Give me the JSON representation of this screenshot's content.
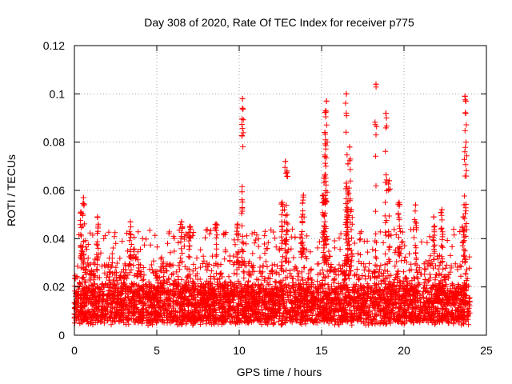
{
  "chart_data": {
    "type": "scatter",
    "title": "Day 308 of 2020, Rate Of TEC Index for receiver p775",
    "xlabel": "GPS time / hours",
    "ylabel": "ROTI / TECUs",
    "xlim": [
      0,
      25
    ],
    "ylim": [
      0,
      0.12
    ],
    "xticks": [
      0,
      5,
      10,
      15,
      20,
      25
    ],
    "xtick_labels": [
      "0",
      "5",
      "10",
      "15",
      "20",
      "25"
    ],
    "yticks": [
      0,
      0.02,
      0.04,
      0.06,
      0.08,
      0.1,
      0.12
    ],
    "ytick_labels": [
      "0",
      "0.02",
      "0.04",
      "0.06",
      "0.08",
      "0.1",
      "0.12"
    ],
    "grid": true,
    "marker": "+",
    "color": "#ff0000",
    "series": [
      {
        "name": "ROTI",
        "x_range": [
          0,
          24
        ],
        "baseline_typical": 0.013,
        "baseline_spread": [
          0.004,
          0.03
        ],
        "notable_points": [
          {
            "x": 0.55,
            "y": 0.057
          },
          {
            "x": 0.4,
            "y": 0.051
          },
          {
            "x": 1.4,
            "y": 0.049
          },
          {
            "x": 3.4,
            "y": 0.047
          },
          {
            "x": 6.5,
            "y": 0.047
          },
          {
            "x": 7.0,
            "y": 0.045
          },
          {
            "x": 8.6,
            "y": 0.046
          },
          {
            "x": 9.9,
            "y": 0.046
          },
          {
            "x": 10.2,
            "y": 0.098
          },
          {
            "x": 10.2,
            "y": 0.094
          },
          {
            "x": 12.6,
            "y": 0.055
          },
          {
            "x": 12.8,
            "y": 0.072
          },
          {
            "x": 12.9,
            "y": 0.068
          },
          {
            "x": 13.9,
            "y": 0.058
          },
          {
            "x": 13.8,
            "y": 0.049
          },
          {
            "x": 15.3,
            "y": 0.097
          },
          {
            "x": 15.25,
            "y": 0.093
          },
          {
            "x": 15.2,
            "y": 0.084
          },
          {
            "x": 15.2,
            "y": 0.074
          },
          {
            "x": 15.15,
            "y": 0.065
          },
          {
            "x": 15.1,
            "y": 0.058
          },
          {
            "x": 16.5,
            "y": 0.1
          },
          {
            "x": 16.7,
            "y": 0.078
          },
          {
            "x": 16.6,
            "y": 0.071
          },
          {
            "x": 16.5,
            "y": 0.063
          },
          {
            "x": 16.6,
            "y": 0.059
          },
          {
            "x": 16.8,
            "y": 0.052
          },
          {
            "x": 18.3,
            "y": 0.104
          },
          {
            "x": 18.9,
            "y": 0.092
          },
          {
            "x": 19.1,
            "y": 0.064
          },
          {
            "x": 19.7,
            "y": 0.055
          },
          {
            "x": 20.7,
            "y": 0.054
          },
          {
            "x": 21.8,
            "y": 0.049
          },
          {
            "x": 22.3,
            "y": 0.052
          },
          {
            "x": 23.7,
            "y": 0.099
          },
          {
            "x": 23.75,
            "y": 0.097
          },
          {
            "x": 23.6,
            "y": 0.049
          }
        ]
      }
    ]
  }
}
